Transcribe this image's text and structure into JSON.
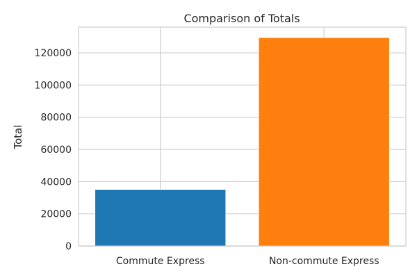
{
  "chart_data": {
    "type": "bar",
    "title": "Comparison of Totals",
    "xlabel": "",
    "ylabel": "Total",
    "categories": [
      "Commute Express",
      "Non-commute Express"
    ],
    "values": [
      35200,
      129500
    ],
    "colors": [
      "#1f77b4",
      "#ff7f0e"
    ],
    "ylim": [
      0,
      136000
    ],
    "yticks": [
      0,
      20000,
      40000,
      60000,
      80000,
      100000,
      120000
    ],
    "ytick_labels": [
      "0",
      "20000",
      "40000",
      "60000",
      "80000",
      "100000",
      "120000"
    ],
    "grid": true,
    "gridColor": "#cccccc",
    "legend": "none"
  }
}
